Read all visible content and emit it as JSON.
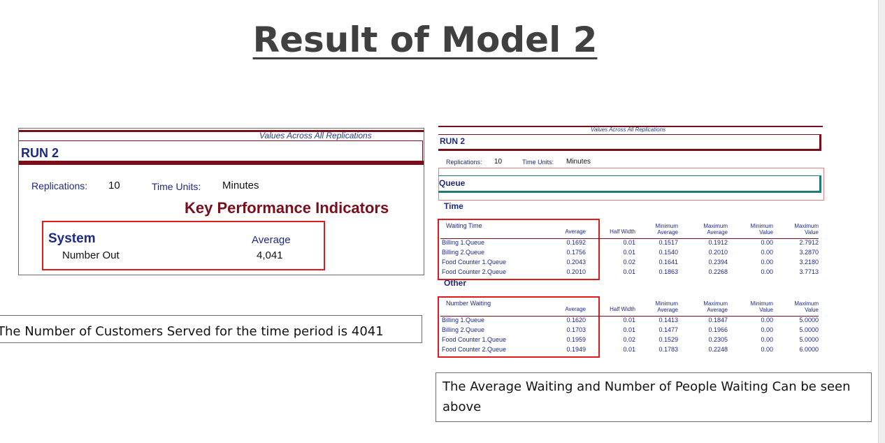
{
  "slide": {
    "title": "Result of Model 2"
  },
  "left_report": {
    "values_across": "Values Across All Replications",
    "run_label": "RUN 2",
    "replications_label": "Replications:",
    "replications_value": "10",
    "time_units_label": "Time Units:",
    "time_units_value": "Minutes",
    "kpi_heading": "Key Performance Indicators",
    "section": "System",
    "average_label": "Average",
    "metric_label": "Number Out",
    "metric_value": "4,041"
  },
  "left_caption": "The Number of Customers Served for the time period is 4041",
  "right_report": {
    "values_across": "Values Across All Replications",
    "run_label": "RUN 2",
    "replications_label": "Replications:",
    "replications_value": "10",
    "time_units_label": "Time Units:",
    "time_units_value": "Minutes",
    "queue_label": "Queue",
    "headers": [
      "Average",
      "Half Width",
      "Minimum\nAverage",
      "Maximum\nAverage",
      "Minimum\nValue",
      "Maximum\nValue"
    ],
    "time_section": {
      "title": "Time",
      "table_title": "Waiting Time",
      "rows": [
        {
          "name": "Billing 1.Queue",
          "values": [
            "0.1692",
            "0.01",
            "0.1517",
            "0.1912",
            "0.00",
            "2.7912"
          ]
        },
        {
          "name": "Billing 2.Queue",
          "values": [
            "0.1756",
            "0.01",
            "0.1540",
            "0.2010",
            "0.00",
            "3.2870"
          ]
        },
        {
          "name": "Food Counter 1.Queue",
          "values": [
            "0.2043",
            "0.02",
            "0.1641",
            "0.2394",
            "0.00",
            "3.2180"
          ]
        },
        {
          "name": "Food Counter 2.Queue",
          "values": [
            "0.2010",
            "0.01",
            "0.1863",
            "0.2268",
            "0.00",
            "3.7713"
          ]
        }
      ]
    },
    "other_section": {
      "title": "Other",
      "table_title": "Number Waiting",
      "rows": [
        {
          "name": "Billing 1.Queue",
          "values": [
            "0.1620",
            "0.01",
            "0.1413",
            "0.1847",
            "0.00",
            "5.0000"
          ]
        },
        {
          "name": "Billing 2.Queue",
          "values": [
            "0.1703",
            "0.01",
            "0.1477",
            "0.1966",
            "0.00",
            "5.0000"
          ]
        },
        {
          "name": "Food Counter 1.Queue",
          "values": [
            "0.1959",
            "0.02",
            "0.1529",
            "0.2305",
            "0.00",
            "5.0000"
          ]
        },
        {
          "name": "Food Counter 2.Queue",
          "values": [
            "0.1949",
            "0.01",
            "0.1783",
            "0.2248",
            "0.00",
            "6.0000"
          ]
        }
      ]
    }
  },
  "right_caption": "The Average Waiting and Number of People Waiting Can be seen above"
}
